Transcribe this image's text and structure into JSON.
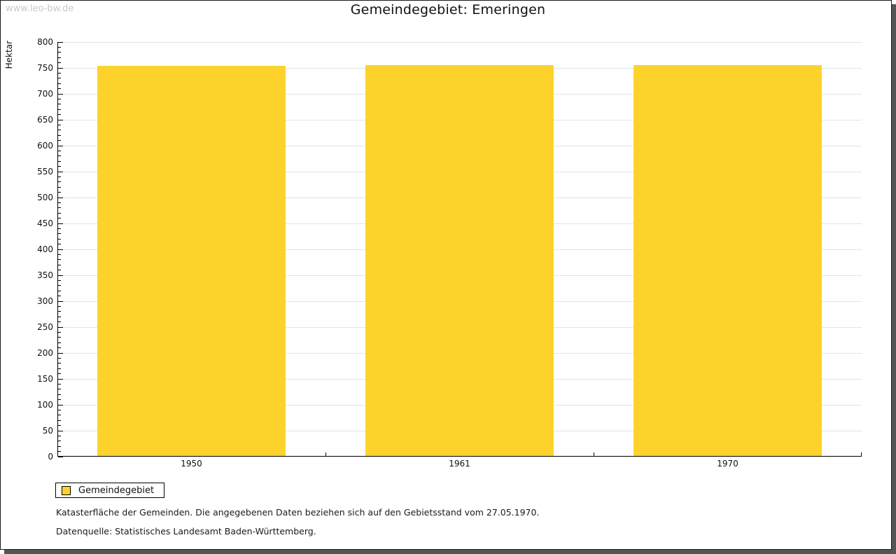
{
  "watermark": "www.leo-bw.de",
  "title": "Gemeindegebiet: Emeringen",
  "chart_data": {
    "type": "bar",
    "title": "Gemeindegebiet: Emeringen",
    "categories": [
      "1950",
      "1961",
      "1970"
    ],
    "series": [
      {
        "name": "Gemeindegebiet",
        "values": [
          754,
          756,
          756
        ]
      }
    ],
    "xlabel": "",
    "ylabel": "Hektar",
    "ylim": [
      0,
      800
    ],
    "ytick_step": 50,
    "minor_tick_step": 10,
    "grid": true,
    "legend_position": "bottom-left",
    "bar_color": "#FDD32B",
    "grid_color": "#E3E3E3",
    "axis_color": "#000000"
  },
  "legend": {
    "items": [
      {
        "label": "Gemeindegebiet",
        "color": "#FDD32B"
      }
    ]
  },
  "footnotes": {
    "line1": "Katasterfläche der Gemeinden. Die angegebenen Daten beziehen sich auf den Gebietsstand vom 27.05.1970.",
    "line2": "Datenquelle: Statistisches Landesamt Baden-Württemberg."
  },
  "colors": {
    "bar": "#FDD32B",
    "gridline": "#E3E3E3",
    "frame_shadow": "#555555",
    "watermark": "#C9C9C9"
  }
}
